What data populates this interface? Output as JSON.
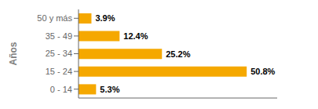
{
  "chart_data": {
    "type": "bar",
    "orientation": "horizontal",
    "ylabel": "Años",
    "categories": [
      "50 y más",
      "35 - 49",
      "25 - 34",
      "15 - 24",
      "0 - 14"
    ],
    "values": [
      3.9,
      12.4,
      25.2,
      50.8,
      5.3
    ],
    "value_labels": [
      "3.9%",
      "12.4%",
      "25.2%",
      "50.8%",
      "5.3%"
    ],
    "data_labels": true,
    "color": "#F5A800",
    "xlim": [
      0,
      60
    ],
    "tick_labels": "y",
    "grid": false
  }
}
